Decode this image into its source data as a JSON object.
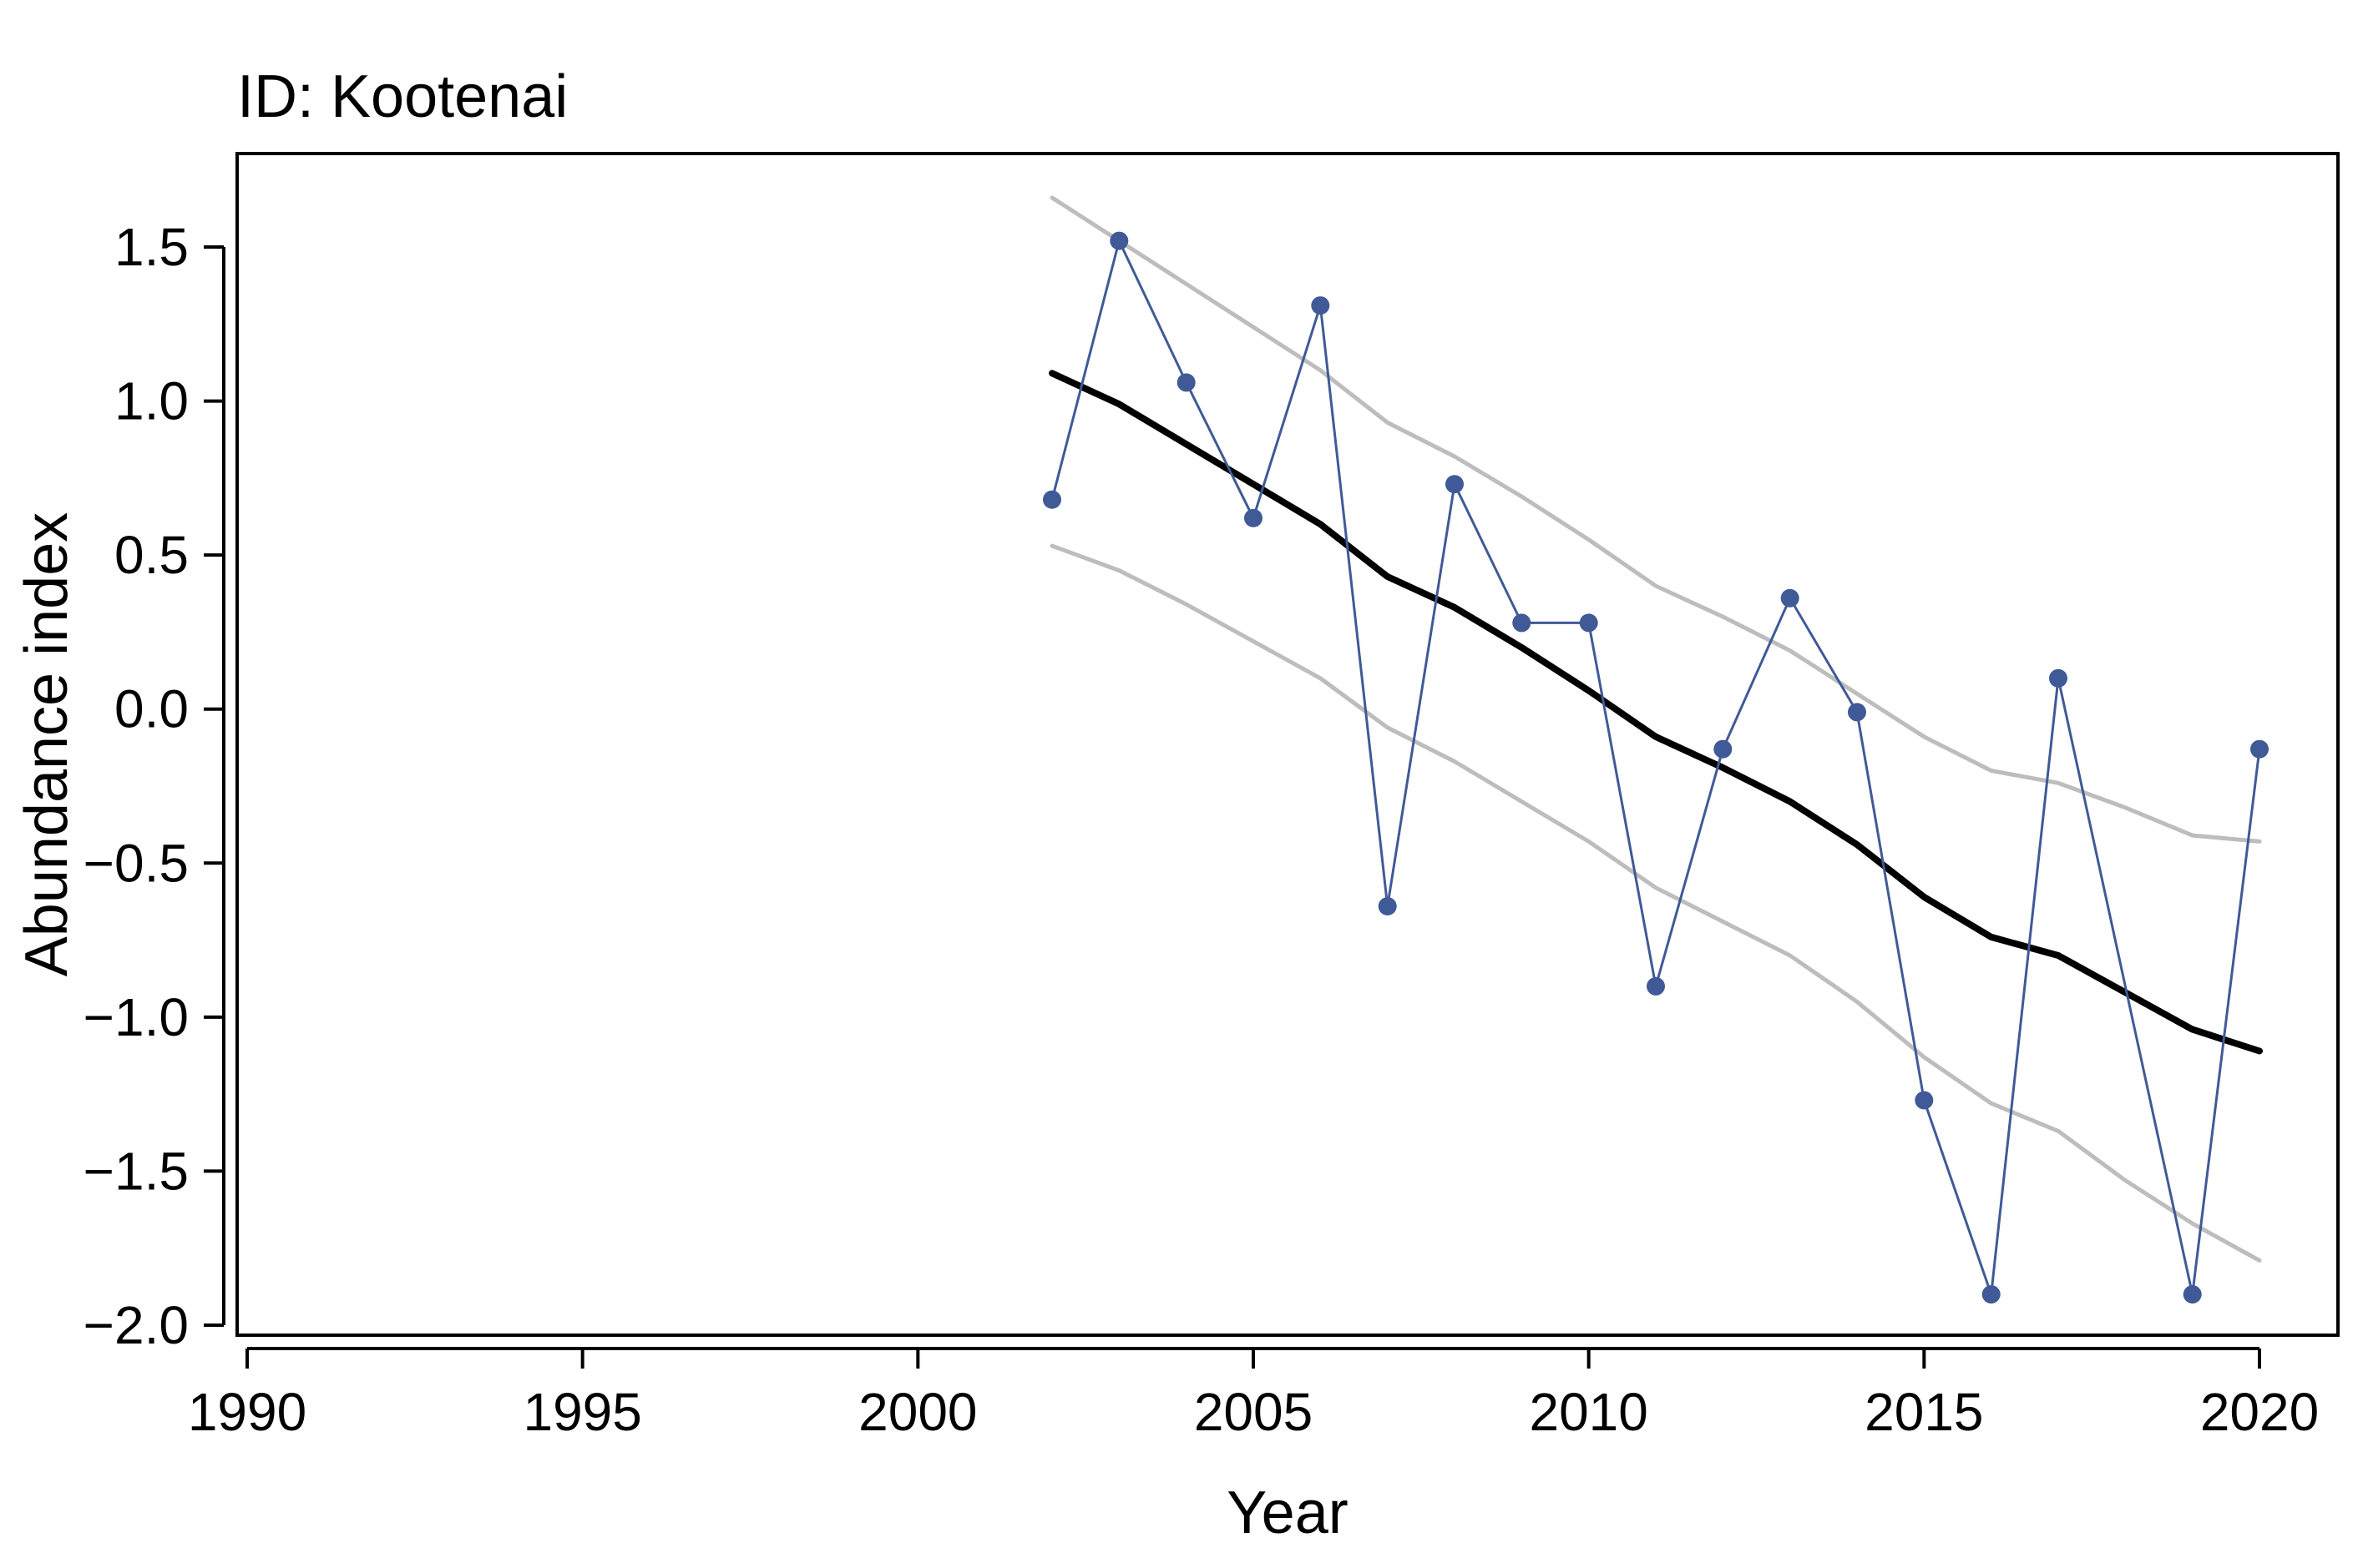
{
  "chart_data": {
    "type": "line",
    "title": "ID: Kootenai",
    "xlabel": "Year",
    "ylabel": "Abundance index",
    "xlim": [
      1990,
      2020
    ],
    "ylim": [
      -2.0,
      1.5
    ],
    "x_ticks": [
      1990,
      1995,
      2000,
      2005,
      2010,
      2015,
      2020
    ],
    "y_ticks": [
      1.5,
      1.0,
      0.5,
      0.0,
      -0.5,
      -1.0,
      -1.5,
      -2.0
    ],
    "y_tick_labels": [
      "1.5",
      "1.0",
      "0.5",
      "0.0",
      "−0.5",
      "−1.0",
      "−1.5",
      "−2.0"
    ],
    "grid": false,
    "legend": "none",
    "colors": {
      "observed": "#3f5a96",
      "trend": "#000000",
      "band": "#bdbdbd"
    },
    "series": [
      {
        "role": "observed",
        "points": [
          [
            2002,
            0.68
          ],
          [
            2003,
            1.52
          ],
          [
            2004,
            1.06
          ],
          [
            2005,
            0.62
          ],
          [
            2006,
            1.31
          ],
          [
            2007,
            -0.64
          ],
          [
            2008,
            0.73
          ],
          [
            2009,
            0.28
          ],
          [
            2010,
            0.28
          ],
          [
            2011,
            -0.9
          ],
          [
            2012,
            -0.13
          ],
          [
            2013,
            0.36
          ],
          [
            2014,
            -0.01
          ],
          [
            2015,
            -1.27
          ],
          [
            2016,
            -1.9
          ],
          [
            2017,
            0.1
          ],
          [
            2019,
            -1.9
          ],
          [
            2020,
            -0.13
          ]
        ]
      },
      {
        "role": "trend",
        "points": [
          [
            2002,
            1.09
          ],
          [
            2003,
            0.99
          ],
          [
            2004,
            0.86
          ],
          [
            2005,
            0.73
          ],
          [
            2006,
            0.6
          ],
          [
            2007,
            0.43
          ],
          [
            2008,
            0.33
          ],
          [
            2009,
            0.2
          ],
          [
            2010,
            0.06
          ],
          [
            2011,
            -0.09
          ],
          [
            2012,
            -0.19
          ],
          [
            2013,
            -0.3
          ],
          [
            2014,
            -0.44
          ],
          [
            2015,
            -0.61
          ],
          [
            2016,
            -0.74
          ],
          [
            2017,
            -0.8
          ],
          [
            2018,
            -0.92
          ],
          [
            2019,
            -1.04
          ],
          [
            2020,
            -1.11
          ]
        ]
      },
      {
        "role": "band-upper",
        "points": [
          [
            2002,
            1.66
          ],
          [
            2003,
            1.52
          ],
          [
            2004,
            1.38
          ],
          [
            2005,
            1.24
          ],
          [
            2006,
            1.1
          ],
          [
            2007,
            0.93
          ],
          [
            2008,
            0.82
          ],
          [
            2009,
            0.69
          ],
          [
            2010,
            0.55
          ],
          [
            2011,
            0.4
          ],
          [
            2012,
            0.3
          ],
          [
            2013,
            0.19
          ],
          [
            2014,
            0.05
          ],
          [
            2015,
            -0.09
          ],
          [
            2016,
            -0.2
          ],
          [
            2017,
            -0.24
          ],
          [
            2018,
            -0.32
          ],
          [
            2019,
            -0.41
          ],
          [
            2020,
            -0.43
          ]
        ]
      },
      {
        "role": "band-lower",
        "points": [
          [
            2002,
            0.53
          ],
          [
            2003,
            0.45
          ],
          [
            2004,
            0.34
          ],
          [
            2005,
            0.22
          ],
          [
            2006,
            0.1
          ],
          [
            2007,
            -0.06
          ],
          [
            2008,
            -0.17
          ],
          [
            2009,
            -0.3
          ],
          [
            2010,
            -0.43
          ],
          [
            2011,
            -0.58
          ],
          [
            2012,
            -0.69
          ],
          [
            2013,
            -0.8
          ],
          [
            2014,
            -0.95
          ],
          [
            2015,
            -1.13
          ],
          [
            2016,
            -1.28
          ],
          [
            2017,
            -1.37
          ],
          [
            2018,
            -1.53
          ],
          [
            2019,
            -1.67
          ],
          [
            2020,
            -1.79
          ]
        ]
      }
    ]
  }
}
